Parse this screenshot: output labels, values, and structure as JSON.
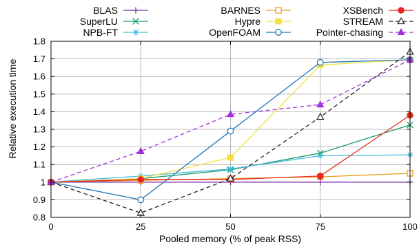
{
  "chart_data": {
    "type": "line",
    "xlabel": "Pooled memory (% of peak RSS)",
    "ylabel": "Relative execution time",
    "x": [
      0,
      25,
      50,
      75,
      100
    ],
    "xlim": [
      0,
      100
    ],
    "ylim": [
      0.8,
      1.8
    ],
    "xticks": [
      "0",
      "25",
      "50",
      "75",
      "100"
    ],
    "yticks": [
      "0.8",
      "0.9",
      "1",
      "1.1",
      "1.2",
      "1.3",
      "1.4",
      "1.5",
      "1.6",
      "1.7",
      "1.8"
    ],
    "grid": true,
    "legend_position": "top",
    "series": [
      {
        "name": "BLAS",
        "color": "#7b2fa8",
        "marker": "plus",
        "dash": "solid",
        "values": [
          1.0,
          1.0,
          1.0,
          1.0,
          1.0
        ]
      },
      {
        "name": "SuperLU",
        "color": "#1a9a6b",
        "marker": "x",
        "dash": "solid",
        "values": [
          1.0,
          1.02,
          1.07,
          1.165,
          1.325
        ]
      },
      {
        "name": "NPB-FT",
        "color": "#40b8e0",
        "marker": "star",
        "dash": "solid",
        "values": [
          1.0,
          1.035,
          1.075,
          1.15,
          1.155
        ]
      },
      {
        "name": "BARNES",
        "color": "#e89a1a",
        "marker": "open-square",
        "dash": "solid",
        "values": [
          1.0,
          1.01,
          1.02,
          1.03,
          1.05
        ]
      },
      {
        "name": "Hypre",
        "color": "#f2e040",
        "marker": "filled-square",
        "dash": "solid",
        "values": [
          1.0,
          1.02,
          1.14,
          1.665,
          1.695
        ]
      },
      {
        "name": "OpenFOAM",
        "color": "#1f78b4",
        "marker": "open-circle",
        "dash": "solid",
        "values": [
          1.0,
          0.9,
          1.29,
          1.68,
          1.695
        ]
      },
      {
        "name": "XSBench",
        "color": "#e8281e",
        "marker": "filled-circle",
        "dash": "solid",
        "values": [
          1.0,
          1.015,
          1.015,
          1.035,
          1.38
        ]
      },
      {
        "name": "STREAM",
        "color": "#222222",
        "marker": "open-triangle",
        "dash": "dashed",
        "values": [
          1.0,
          0.825,
          1.02,
          1.37,
          1.74
        ]
      },
      {
        "name": "Pointer-chasing",
        "color": "#a030d8",
        "marker": "filled-triangle",
        "dash": "dashed",
        "values": [
          1.0,
          1.175,
          1.385,
          1.44,
          1.695
        ]
      }
    ]
  }
}
